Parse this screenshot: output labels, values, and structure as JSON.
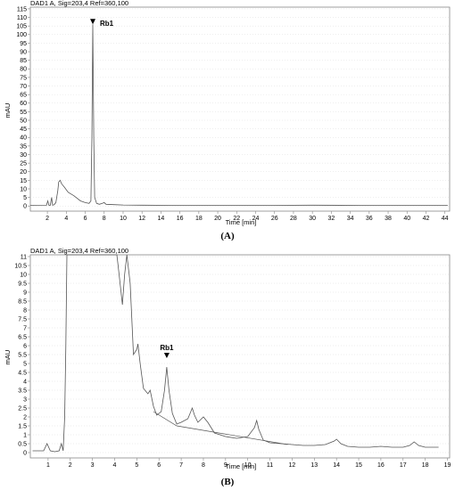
{
  "charts": [
    {
      "header": "DAD1 A, Sig=203,4 Ref=360,100",
      "ylabel": "mAU",
      "xlabel": "Time [min]",
      "caption": "(A)",
      "peak_label": "Rb1"
    },
    {
      "header": "DAD1 A, Sig=203,4 Ref=360,100",
      "ylabel": "mAU",
      "xlabel": "Time [min]",
      "caption": "(B)",
      "peak_label": "Rb1"
    }
  ],
  "colors": {
    "trace": "#555555",
    "frame": "#888888",
    "text": "#000000"
  },
  "chart_data": [
    {
      "type": "line",
      "header": "DAD1 A, Sig=203,4 Ref=360,100",
      "xlabel": "Time [min]",
      "ylabel": "mAU",
      "xlim": [
        0.2,
        44.5
      ],
      "ylim": [
        -3,
        116
      ],
      "xticks": [
        2,
        4,
        6,
        8,
        10,
        12,
        14,
        16,
        18,
        20,
        22,
        24,
        26,
        28,
        30,
        32,
        34,
        36,
        38,
        40,
        42,
        44
      ],
      "yticks": [
        0,
        5,
        10,
        15,
        20,
        25,
        30,
        35,
        40,
        45,
        50,
        55,
        60,
        65,
        70,
        75,
        80,
        85,
        90,
        95,
        100,
        105,
        110,
        115
      ],
      "annotation": {
        "label": "Rb1",
        "x": 6.8,
        "y": 106
      },
      "series": [
        {
          "x": [
            0.2,
            1.9,
            2.05,
            2.15,
            2.3,
            2.45,
            2.55,
            2.65,
            2.75,
            2.9,
            3.1,
            3.2,
            3.35,
            3.5,
            3.8,
            4.2,
            4.8,
            5.5,
            6.0,
            6.4,
            6.6,
            6.7,
            6.8,
            6.9,
            7.0,
            7.2,
            7.5,
            7.8,
            8.0,
            8.2,
            9,
            10,
            12,
            15,
            20,
            26,
            30,
            35,
            40,
            44.3
          ],
          "y": [
            0.3,
            0.4,
            3,
            0.5,
            0.4,
            5,
            0.5,
            0.6,
            1,
            2,
            9,
            14,
            15,
            13,
            11,
            8,
            6,
            3,
            2,
            1.5,
            3,
            40,
            106,
            40,
            5,
            1.5,
            1,
            1.5,
            2,
            1,
            0.8,
            0.6,
            0.5,
            0.4,
            0.4,
            0.4,
            0.5,
            0.4,
            0.4,
            0.4
          ]
        }
      ]
    },
    {
      "type": "line",
      "header": "DAD1 A, Sig=203,4 Ref=360,100",
      "xlabel": "Time [min]",
      "ylabel": "mAU",
      "xlim": [
        0.2,
        19.1
      ],
      "ylim": [
        -0.3,
        11.1
      ],
      "xticks": [
        1,
        2,
        3,
        4,
        5,
        6,
        7,
        8,
        9,
        10,
        11,
        12,
        13,
        14,
        15,
        16,
        17,
        18,
        19
      ],
      "yticks": [
        0,
        0.5,
        1,
        1.5,
        2,
        2.5,
        3,
        3.5,
        4,
        4.5,
        5,
        5.5,
        6,
        6.5,
        7,
        7.5,
        8,
        8.5,
        9,
        9.5,
        10,
        10.5,
        11
      ],
      "annotation": {
        "label": "Rb1",
        "x": 6.35,
        "y": 5.3
      },
      "series": [
        {
          "x": [
            0.3,
            0.8,
            0.95,
            1.1,
            1.3,
            1.5,
            1.6,
            1.68,
            1.75,
            1.8,
            1.85,
            1.9,
            2.0,
            4.1,
            4.2,
            4.35,
            4.45,
            4.55,
            4.7,
            4.85,
            5.0,
            5.05,
            5.15,
            5.3,
            5.5,
            5.6,
            5.75,
            5.9,
            6.1,
            6.25,
            6.35,
            6.45,
            6.6,
            6.8,
            7.0,
            7.3,
            7.5,
            7.6,
            7.75,
            8.0,
            8.2,
            8.5,
            9.0,
            9.5,
            10.0,
            10.3,
            10.4,
            10.5,
            10.7,
            11.0,
            11.5,
            12.0,
            12.5,
            13.0,
            13.5,
            13.9,
            14.0,
            14.2,
            14.5,
            15.0,
            15.5,
            16.0,
            16.5,
            17.0,
            17.3,
            17.5,
            17.7,
            18.0,
            18.6
          ],
          "y": [
            0.1,
            0.1,
            0.5,
            0.1,
            0.05,
            0.1,
            0.5,
            0.1,
            2,
            6,
            11.1,
            11.1,
            11.1,
            11.1,
            10,
            8.3,
            10,
            11.1,
            9.5,
            5.5,
            5.8,
            6.1,
            5,
            3.6,
            3.3,
            3.5,
            2.6,
            2.1,
            2.3,
            3.5,
            4.8,
            3.5,
            2.2,
            1.6,
            1.7,
            1.9,
            2.5,
            2.1,
            1.7,
            2.0,
            1.7,
            1.1,
            0.9,
            0.8,
            0.9,
            1.4,
            1.8,
            1.3,
            0.7,
            0.55,
            0.5,
            0.45,
            0.4,
            0.4,
            0.45,
            0.65,
            0.75,
            0.5,
            0.35,
            0.3,
            0.3,
            0.35,
            0.3,
            0.3,
            0.4,
            0.6,
            0.4,
            0.3,
            0.3
          ]
        }
      ]
    }
  ]
}
